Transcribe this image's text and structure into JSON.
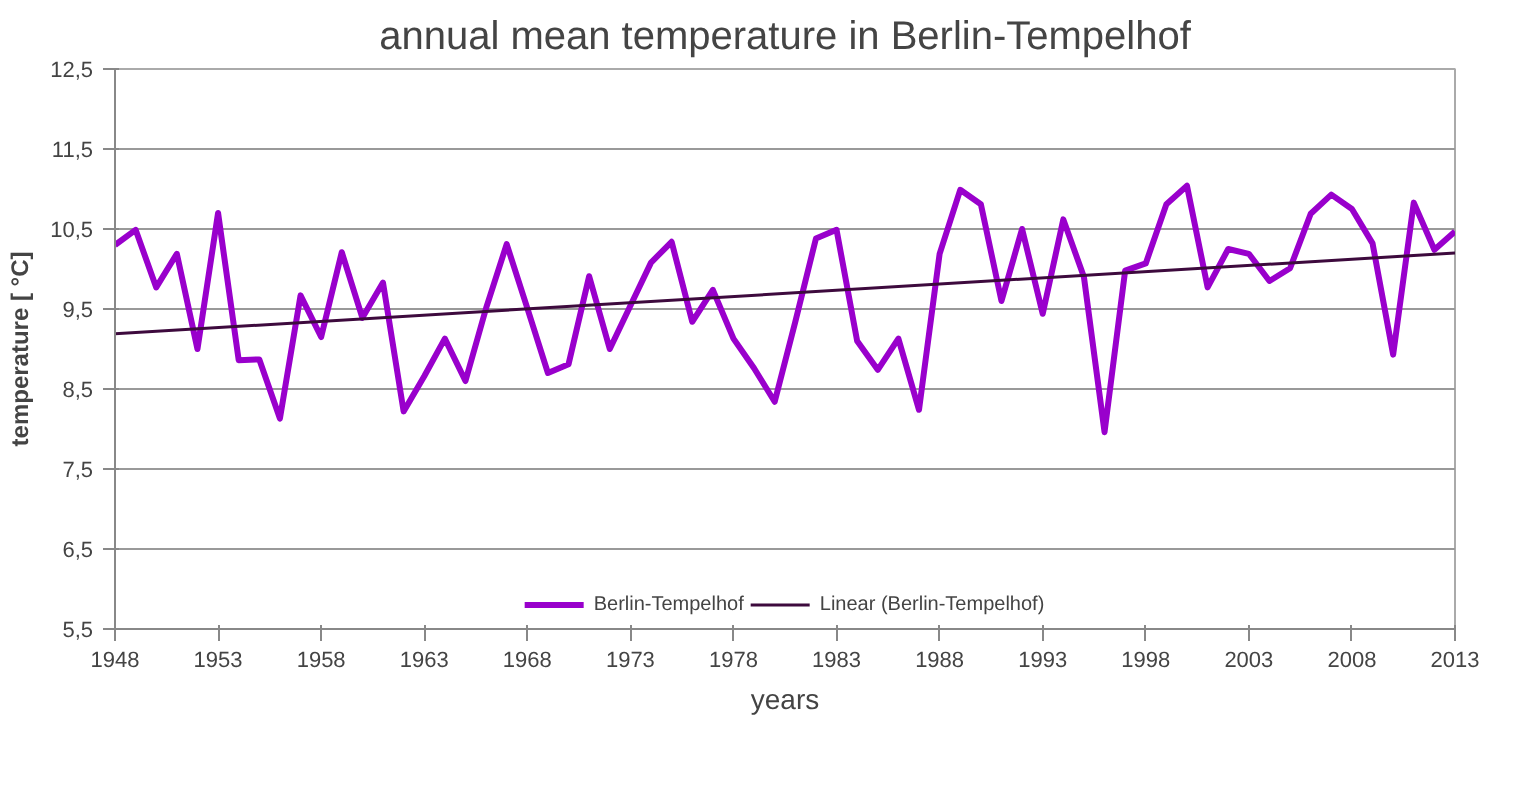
{
  "chart_data": {
    "type": "line",
    "title": "annual mean temperature in Berlin-Tempelhof",
    "xlabel": "years",
    "ylabel": "temperature [ °C]",
    "x": [
      1948,
      1949,
      1950,
      1951,
      1952,
      1953,
      1954,
      1955,
      1956,
      1957,
      1958,
      1959,
      1960,
      1961,
      1962,
      1963,
      1964,
      1965,
      1966,
      1967,
      1968,
      1969,
      1970,
      1971,
      1972,
      1973,
      1974,
      1975,
      1976,
      1977,
      1978,
      1979,
      1980,
      1981,
      1982,
      1983,
      1984,
      1985,
      1986,
      1987,
      1988,
      1989,
      1990,
      1991,
      1992,
      1993,
      1994,
      1995,
      1996,
      1997,
      1998,
      1999,
      2000,
      2001,
      2002,
      2003,
      2004,
      2005,
      2006,
      2007,
      2008,
      2009,
      2010,
      2011,
      2012,
      2013
    ],
    "series": [
      {
        "name": "Berlin-Tempelhof",
        "color": "#9900cc",
        "values": [
          10.3,
          10.49,
          9.77,
          10.19,
          9.0,
          10.7,
          8.86,
          8.87,
          8.13,
          9.67,
          9.15,
          10.21,
          9.39,
          9.83,
          8.22,
          8.66,
          9.13,
          8.6,
          9.51,
          10.31,
          9.51,
          8.7,
          8.81,
          9.91,
          9.0,
          9.54,
          10.08,
          10.34,
          9.34,
          9.74,
          9.13,
          8.76,
          8.34,
          9.34,
          10.38,
          10.49,
          9.1,
          8.74,
          9.13,
          8.24,
          10.19,
          10.99,
          10.81,
          9.6,
          10.5,
          9.44,
          10.62,
          9.9,
          7.96,
          9.98,
          10.07,
          10.81,
          11.04,
          9.77,
          10.25,
          10.19,
          9.85,
          10.01,
          10.69,
          10.93,
          10.75,
          10.32,
          8.93,
          10.83,
          10.24,
          10.47
        ]
      },
      {
        "name": "Linear (Berlin-Tempelhof)",
        "color": "#3d0a3d",
        "type": "line",
        "x": [
          1948,
          2013
        ],
        "values": [
          9.19,
          10.2
        ]
      }
    ],
    "xlim": [
      1948,
      2013
    ],
    "xticks": [
      1948,
      1953,
      1958,
      1963,
      1968,
      1973,
      1978,
      1983,
      1988,
      1993,
      1998,
      2003,
      2008,
      2013
    ],
    "ylim": [
      5.5,
      12.5
    ],
    "yticks": [
      {
        "value": 5.5,
        "label": "5,5"
      },
      {
        "value": 6.5,
        "label": "6,5"
      },
      {
        "value": 7.5,
        "label": "7,5"
      },
      {
        "value": 8.5,
        "label": "8,5"
      },
      {
        "value": 9.5,
        "label": "9,5"
      },
      {
        "value": 10.5,
        "label": "10,5"
      },
      {
        "value": 11.5,
        "label": "11,5"
      },
      {
        "value": 12.5,
        "label": "12,5"
      }
    ],
    "grid": "y",
    "legend": "bottom",
    "marker": "none",
    "line_style": "solid"
  }
}
